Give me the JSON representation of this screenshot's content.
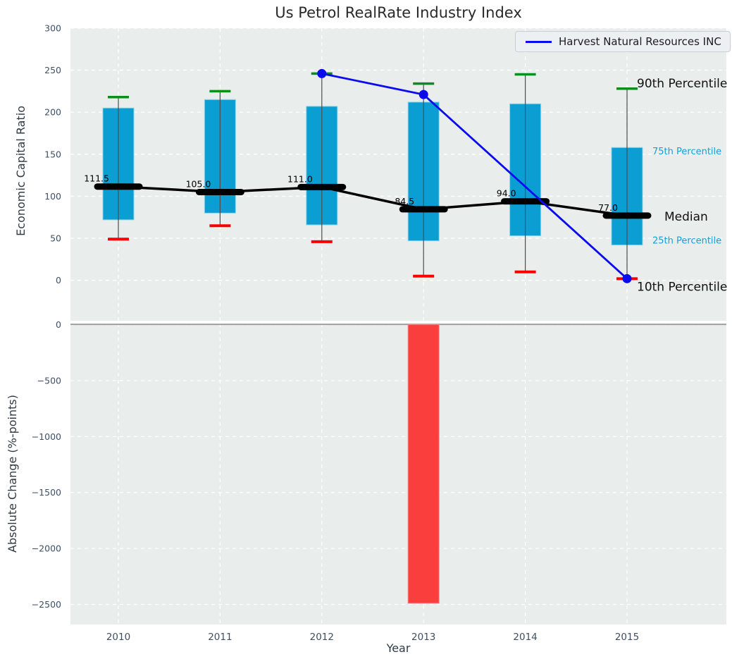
{
  "colors": {
    "box_fill": "#0a9ed3",
    "box_edge": "#86d3ee",
    "whisker": "#4d4d4d",
    "cap_top": "#0a8f1a",
    "cap_bottom": "#f80000",
    "median_line": "#000000",
    "company_line": "#0b0bf0",
    "axes_bg": "#e9edec",
    "grid": "#ffffff",
    "tick_label": "#3f4f63",
    "zero_line": "#9b9b9b",
    "annotation_big": "#111111",
    "annotation_small": "#18a0d5",
    "bar_fill": "#fa3e3e",
    "bar_edge": "#ff8080"
  },
  "chart_data": [
    {
      "type": "boxplot",
      "title": "Us Petrol RealRate Industry Index",
      "ylabel": "Economic Capital Ratio",
      "categories": [
        "2010",
        "2011",
        "2012",
        "2013",
        "2014",
        "2015"
      ],
      "yticks": [
        0,
        50,
        100,
        150,
        200,
        250,
        300
      ],
      "ylim": [
        -48,
        300
      ],
      "grid": true,
      "legend": {
        "position": "upper right",
        "label": "Harvest Natural Resources INC"
      },
      "series": [
        {
          "name": "90th Percentile",
          "values": [
            218,
            225,
            246,
            234,
            245,
            228
          ]
        },
        {
          "name": "75th Percentile",
          "values": [
            205,
            215,
            207,
            212,
            210,
            158
          ]
        },
        {
          "name": "Median",
          "values": [
            111.5,
            105.0,
            111.0,
            84.5,
            94.0,
            77.0
          ]
        },
        {
          "name": "25th Percentile",
          "values": [
            72,
            80,
            66,
            47,
            53,
            42
          ]
        },
        {
          "name": "10th Percentile",
          "values": [
            49,
            65,
            46,
            5,
            10,
            2
          ]
        }
      ],
      "median_value_labels": [
        "111.5",
        "105.0",
        "111.0",
        "84.5",
        "94.0",
        "77.0"
      ],
      "company_line": {
        "name": "Harvest Natural Resources INC",
        "x": [
          "2012",
          "2013",
          "2015"
        ],
        "y": [
          246,
          221,
          2
        ]
      },
      "right_annotations": [
        "90th Percentile",
        "75th Percentile",
        "Median",
        "25th Percentile",
        "10th Percentile"
      ]
    },
    {
      "type": "bar",
      "ylabel": "Absolute Change (%-points)",
      "xlabel": "Year",
      "categories": [
        "2010",
        "2011",
        "2012",
        "2013",
        "2014",
        "2015"
      ],
      "values": [
        0,
        0,
        0,
        -2490,
        0,
        0
      ],
      "yticks": [
        0,
        -500,
        -1000,
        -1500,
        -2000,
        -2500
      ],
      "ylim": [
        -2680,
        10
      ],
      "grid": true
    }
  ]
}
